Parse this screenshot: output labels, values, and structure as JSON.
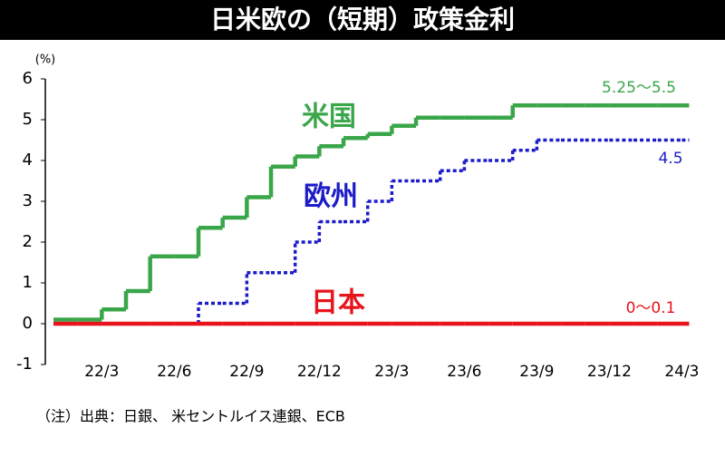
{
  "chart_data": {
    "type": "step",
    "title": "日米欧の（短期）政策金利",
    "y_unit": "(%)",
    "footnote": "（注）出典：日銀、 米セントルイス連銀、ECB",
    "categories": [
      null,
      null,
      "22/3",
      null,
      null,
      "22/6",
      null,
      null,
      "22/9",
      null,
      null,
      "22/12",
      null,
      null,
      "23/3",
      null,
      null,
      "23/6",
      null,
      null,
      "23/9",
      null,
      null,
      "23/12",
      null,
      null,
      "24/3"
    ],
    "ylim": [
      -1,
      6
    ],
    "yticks": [
      -1,
      0,
      1,
      2,
      3,
      4,
      5,
      6
    ],
    "series": [
      {
        "name": "米国",
        "color": "#3aa64a",
        "dash": false,
        "end_label": "5.25～5.5",
        "values": [
          0.1,
          0.1,
          0.35,
          0.8,
          1.65,
          1.65,
          2.35,
          2.6,
          3.1,
          3.85,
          4.1,
          4.35,
          4.55,
          4.65,
          4.85,
          5.05,
          5.05,
          5.05,
          5.05,
          5.35,
          5.35,
          5.35,
          5.35,
          5.35,
          5.35,
          5.35,
          5.35
        ]
      },
      {
        "name": "欧州",
        "color": "#1c1cc8",
        "dash": true,
        "end_label": "4.5",
        "values": [
          0,
          0,
          0,
          0,
          0,
          0,
          0.5,
          0.5,
          1.25,
          1.25,
          2.0,
          2.5,
          2.5,
          3.0,
          3.5,
          3.5,
          3.75,
          4.0,
          4.0,
          4.25,
          4.5,
          4.5,
          4.5,
          4.5,
          4.5,
          4.5,
          4.5
        ]
      },
      {
        "name": "日本",
        "color": "#e8141c",
        "dash": false,
        "end_label": "0～0.1",
        "values": [
          0,
          0,
          0,
          0,
          0,
          0,
          0,
          0,
          0,
          0,
          0,
          0,
          0,
          0,
          0,
          0,
          0,
          0,
          0,
          0,
          0,
          0,
          0,
          0,
          0,
          0,
          0
        ]
      }
    ]
  }
}
